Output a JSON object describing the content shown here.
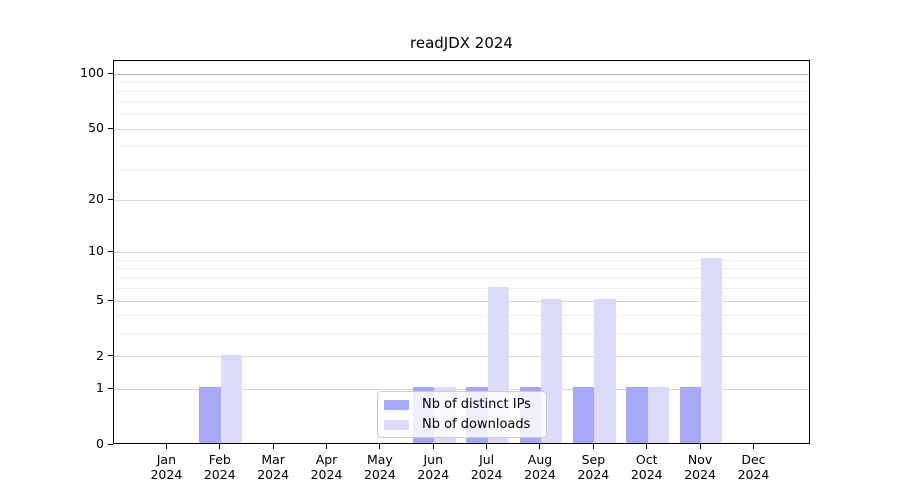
{
  "title": "readJDX 2024",
  "colors": {
    "ips": "#a8a8f8",
    "downloads": "#dcdcfa",
    "grid_major": "#d6d6d6",
    "grid_minor": "#ededed",
    "grid_top": "#b5b5b5",
    "frame": "#000000"
  },
  "legend": {
    "items": [
      {
        "label": "Nb of distinct IPs",
        "series": "ips"
      },
      {
        "label": "Nb of downloads",
        "series": "downloads"
      }
    ]
  },
  "chart_data": {
    "type": "bar",
    "title": "readJDX 2024",
    "categories": [
      "Jan 2024",
      "Feb 2024",
      "Mar 2024",
      "Apr 2024",
      "May 2024",
      "Jun 2024",
      "Jul 2024",
      "Aug 2024",
      "Sep 2024",
      "Oct 2024",
      "Nov 2024",
      "Dec 2024"
    ],
    "series": [
      {
        "name": "Nb of distinct IPs",
        "color_key": "ips",
        "values": [
          0,
          1,
          0,
          0,
          0,
          1,
          1,
          1,
          1,
          1,
          1,
          0
        ]
      },
      {
        "name": "Nb of downloads",
        "color_key": "downloads",
        "values": [
          0,
          2,
          0,
          0,
          0,
          1,
          6,
          5,
          5,
          1,
          9,
          0
        ]
      }
    ],
    "yticks": [
      0,
      1,
      2,
      5,
      10,
      20,
      50,
      100
    ],
    "y_minor_ticks": [
      3,
      4,
      6,
      7,
      8,
      9,
      30,
      40,
      60,
      70,
      80,
      90
    ],
    "ylim": [
      0,
      118
    ],
    "scale": "log10(value+1)",
    "grid": "on",
    "legend_position": "lower center"
  }
}
